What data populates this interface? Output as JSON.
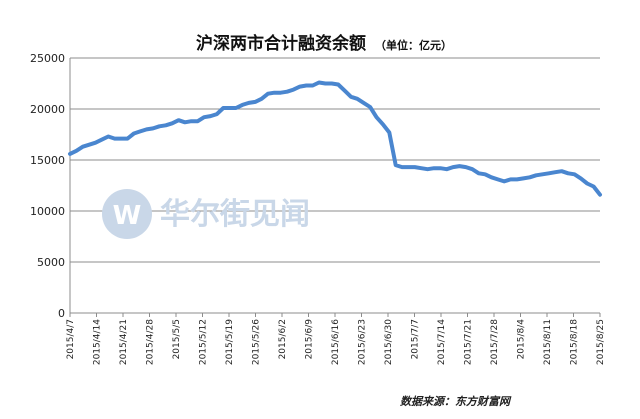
{
  "chart_data": {
    "type": "line",
    "title": "沪深两市合计融资余额",
    "subtitle": "（单位：亿元）",
    "source": "数据来源：东方财富网",
    "watermark": "华尔街见闻",
    "ylim": [
      0,
      25000
    ],
    "yticks": [
      0,
      5000,
      10000,
      15000,
      20000,
      25000
    ],
    "grid": true,
    "line_color": "#4a86cf",
    "x_labels": [
      "2015/4/7",
      "2015/4/14",
      "2015/4/21",
      "2015/4/28",
      "2015/5/5",
      "2015/5/12",
      "2015/5/19",
      "2015/5/26",
      "2015/6/2",
      "2015/6/9",
      "2015/6/16",
      "2015/6/23",
      "2015/6/30",
      "2015/7/7",
      "2015/7/14",
      "2015/7/21",
      "2015/7/28",
      "2015/8/4",
      "2015/8/11",
      "2015/8/18",
      "2015/8/25"
    ],
    "series": [
      {
        "values": [
          [
            0,
            15600
          ],
          [
            1,
            15900
          ],
          [
            2,
            16300
          ],
          [
            3,
            16500
          ],
          [
            4,
            16700
          ],
          [
            5,
            17000
          ],
          [
            6,
            17300
          ],
          [
            7,
            17100
          ],
          [
            8,
            17100
          ],
          [
            9,
            17100
          ],
          [
            10,
            17600
          ],
          [
            11,
            17800
          ],
          [
            12,
            18000
          ],
          [
            13,
            18100
          ],
          [
            14,
            18300
          ],
          [
            15,
            18400
          ],
          [
            16,
            18600
          ],
          [
            17,
            18900
          ],
          [
            18,
            18700
          ],
          [
            19,
            18800
          ],
          [
            20,
            18800
          ],
          [
            21,
            19200
          ],
          [
            22,
            19300
          ],
          [
            23,
            19500
          ],
          [
            24,
            20100
          ],
          [
            25,
            20100
          ],
          [
            26,
            20100
          ],
          [
            27,
            20400
          ],
          [
            28,
            20600
          ],
          [
            29,
            20700
          ],
          [
            30,
            21000
          ],
          [
            31,
            21500
          ],
          [
            32,
            21600
          ],
          [
            33,
            21600
          ],
          [
            34,
            21700
          ],
          [
            35,
            21900
          ],
          [
            36,
            22200
          ],
          [
            37,
            22300
          ],
          [
            38,
            22300
          ],
          [
            39,
            22600
          ],
          [
            40,
            22500
          ],
          [
            41,
            22500
          ],
          [
            42,
            22400
          ],
          [
            43,
            21800
          ],
          [
            44,
            21200
          ],
          [
            45,
            21000
          ],
          [
            46,
            20600
          ],
          [
            47,
            20200
          ],
          [
            48,
            19200
          ],
          [
            49,
            18500
          ],
          [
            50,
            17700
          ],
          [
            51,
            14500
          ],
          [
            52,
            14300
          ],
          [
            53,
            14300
          ],
          [
            54,
            14300
          ],
          [
            55,
            14200
          ],
          [
            56,
            14100
          ],
          [
            57,
            14200
          ],
          [
            58,
            14200
          ],
          [
            59,
            14100
          ],
          [
            60,
            14300
          ],
          [
            61,
            14400
          ],
          [
            62,
            14300
          ],
          [
            63,
            14100
          ],
          [
            64,
            13700
          ],
          [
            65,
            13600
          ],
          [
            66,
            13300
          ],
          [
            67,
            13100
          ],
          [
            68,
            12900
          ],
          [
            69,
            13100
          ],
          [
            70,
            13100
          ],
          [
            71,
            13200
          ],
          [
            72,
            13300
          ],
          [
            73,
            13500
          ],
          [
            74,
            13600
          ],
          [
            75,
            13700
          ],
          [
            76,
            13800
          ],
          [
            77,
            13900
          ],
          [
            78,
            13700
          ],
          [
            79,
            13600
          ],
          [
            80,
            13200
          ],
          [
            81,
            12700
          ],
          [
            82,
            12400
          ],
          [
            83,
            11600
          ]
        ]
      }
    ]
  }
}
